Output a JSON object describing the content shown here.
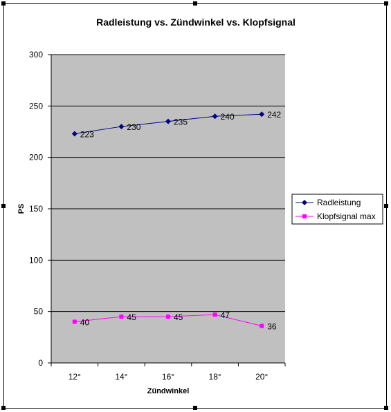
{
  "chart_data": {
    "type": "line",
    "title": "Radleistung vs. Zündwinkel vs. Klopfsignal",
    "xlabel": "Zündwinkel",
    "ylabel": "PS",
    "categories": [
      "12°",
      "14°",
      "16°",
      "18°",
      "20°"
    ],
    "ylim": [
      0,
      300
    ],
    "yticks": [
      "0",
      "50",
      "100",
      "150",
      "200",
      "250",
      "300"
    ],
    "grid": "horizontal",
    "legend_position": "right",
    "plot_background": "#c0c0c0",
    "series": [
      {
        "name": "Radleistung",
        "values": [
          223,
          230,
          235,
          240,
          242
        ],
        "labels": [
          "223",
          "230",
          "235",
          "240",
          "242"
        ],
        "color": "#000080",
        "marker": "diamond"
      },
      {
        "name": "Klopfsignal max",
        "values": [
          40,
          45,
          45,
          47,
          36
        ],
        "labels": [
          "40",
          "45",
          "45",
          "47",
          "36"
        ],
        "color": "#ff00ff",
        "marker": "square"
      }
    ]
  }
}
